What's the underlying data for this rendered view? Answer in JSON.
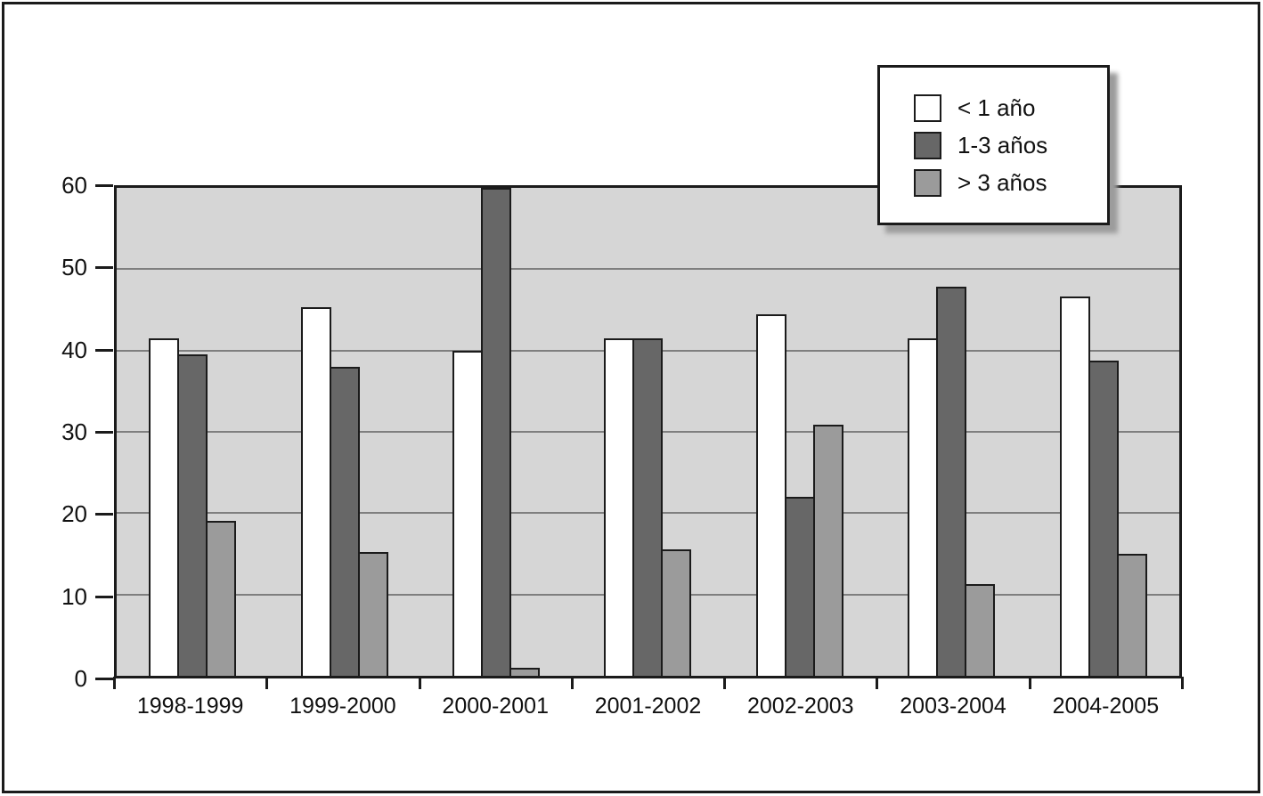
{
  "figure": {
    "background": "#ffffff",
    "frame_color": "#1b1b1b"
  },
  "chart_data": {
    "type": "bar",
    "title": "",
    "xlabel": "",
    "ylabel": "",
    "categories": [
      "1998-1999",
      "1999-2000",
      "2000-2001",
      "2001-2002",
      "2002-2003",
      "2003-2004",
      "2004-2005"
    ],
    "series": [
      {
        "name": "< 1 año",
        "color": "#ffffff",
        "values": [
          41.5,
          45.3,
          40.0,
          41.5,
          44.4,
          41.5,
          46.6
        ]
      },
      {
        "name": "1-3 años",
        "color": "#676767",
        "values": [
          39.5,
          38.0,
          60.0,
          41.5,
          22.0,
          47.9,
          38.8
        ]
      },
      {
        "name": "> 3 años",
        "color": "#9b9b9b",
        "values": [
          19.0,
          15.2,
          1.0,
          15.5,
          30.9,
          11.3,
          15.0
        ]
      }
    ],
    "ylim": [
      0,
      60
    ],
    "yticks": [
      0,
      10,
      20,
      30,
      40,
      50,
      60
    ],
    "grid": "horizontal",
    "plot_background": "#d6d6d6",
    "gridline_color": "#7f7f7f",
    "axis_color": "#1b1b1b",
    "bar_border_color": "#1b1b1b",
    "legend": {
      "position": "top-right",
      "items": [
        "< 1 año",
        "1-3 años",
        "> 3 años"
      ]
    }
  }
}
